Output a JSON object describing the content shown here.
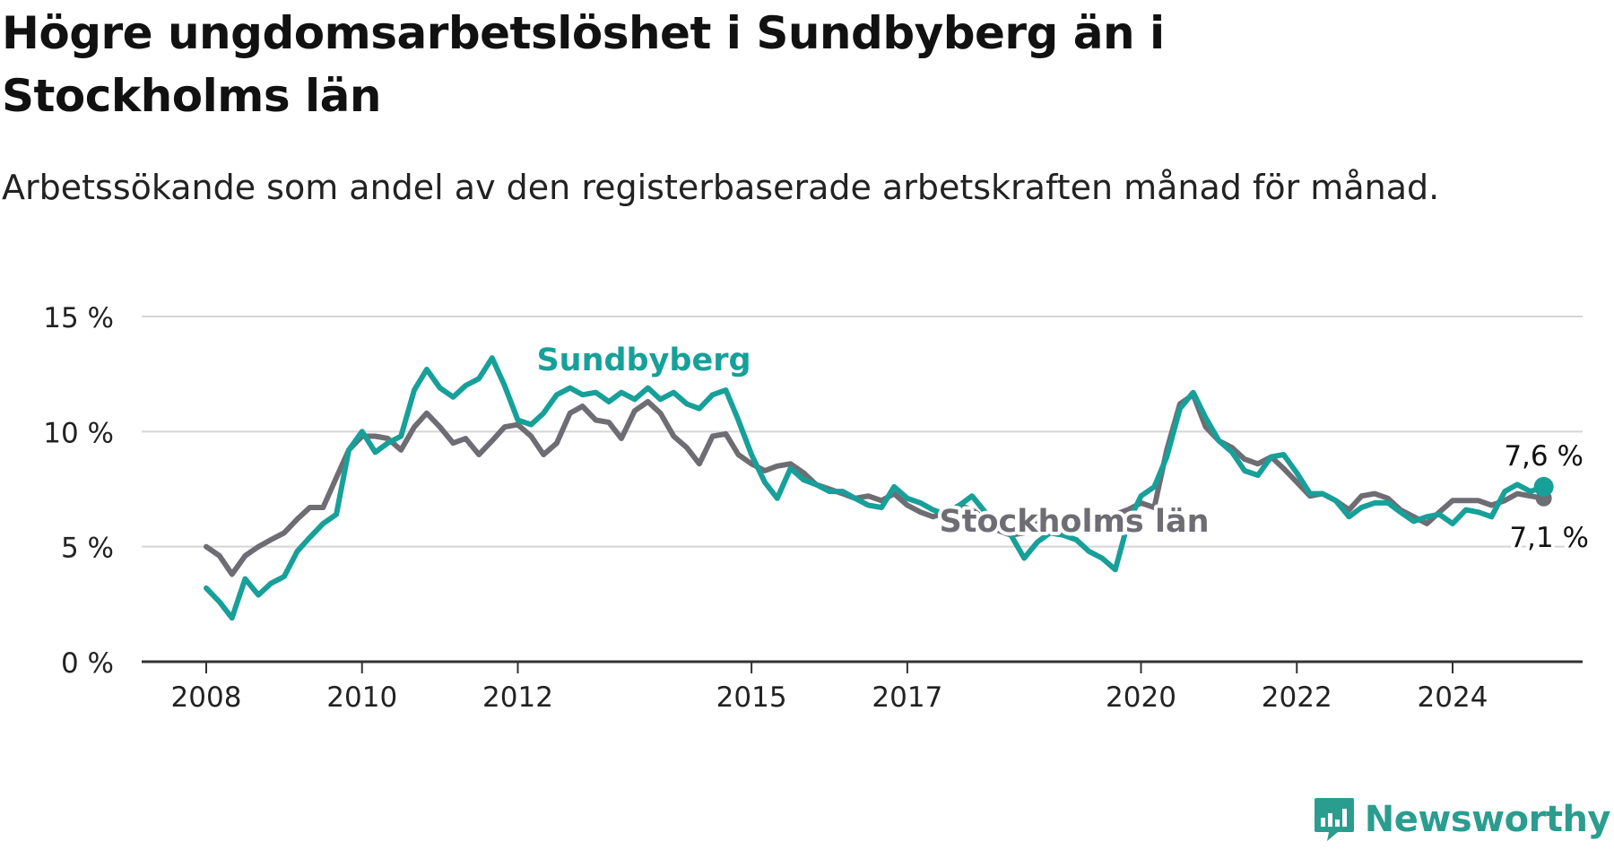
{
  "title": "Högre ungdomsarbetslöshet i Sundbyberg än i Stockholms län",
  "subtitle": "Arbetssökande som andel av den registerbaserade arbetskraften månad för månad.",
  "brand": {
    "name": "Newsworthy",
    "icon": "newsworthy-logo-icon"
  },
  "colors": {
    "sundbyberg": "#17a099",
    "stockholm": "#6e6d73",
    "grid": "#d5d5d5",
    "axis": "#333333",
    "text": "#222222"
  },
  "chart_data": {
    "type": "line",
    "title": "Högre ungdomsarbetslöshet i Sundbyberg än i Stockholms län",
    "xlabel": "",
    "ylabel": "",
    "ylim": [
      0,
      15
    ],
    "yticks": [
      0,
      5,
      10,
      15
    ],
    "ytick_labels": [
      "0 %",
      "5 %",
      "10 %",
      "15 %"
    ],
    "xticks": [
      2008,
      2010,
      2012,
      2015,
      2017,
      2020,
      2022,
      2024
    ],
    "xtick_labels": [
      "2008",
      "2010",
      "2012",
      "2015",
      "2017",
      "2020",
      "2022",
      "2024"
    ],
    "grid": true,
    "legend": "direct labels on lines",
    "series": [
      {
        "name": "Sundbyberg",
        "color": "#17a099",
        "last_label": "7,6 %",
        "points": [
          [
            2008.0,
            3.2
          ],
          [
            2008.17,
            2.6
          ],
          [
            2008.33,
            1.9
          ],
          [
            2008.5,
            3.6
          ],
          [
            2008.67,
            2.9
          ],
          [
            2008.83,
            3.4
          ],
          [
            2009.0,
            3.7
          ],
          [
            2009.17,
            4.8
          ],
          [
            2009.33,
            5.4
          ],
          [
            2009.5,
            6.0
          ],
          [
            2009.67,
            6.4
          ],
          [
            2009.83,
            9.2
          ],
          [
            2010.0,
            10.0
          ],
          [
            2010.17,
            9.1
          ],
          [
            2010.33,
            9.5
          ],
          [
            2010.5,
            9.8
          ],
          [
            2010.67,
            11.8
          ],
          [
            2010.83,
            12.7
          ],
          [
            2011.0,
            11.9
          ],
          [
            2011.17,
            11.5
          ],
          [
            2011.33,
            12.0
          ],
          [
            2011.5,
            12.3
          ],
          [
            2011.67,
            13.2
          ],
          [
            2011.83,
            12.0
          ],
          [
            2012.0,
            10.5
          ],
          [
            2012.17,
            10.3
          ],
          [
            2012.33,
            10.8
          ],
          [
            2012.5,
            11.6
          ],
          [
            2012.67,
            11.9
          ],
          [
            2012.83,
            11.6
          ],
          [
            2013.0,
            11.7
          ],
          [
            2013.17,
            11.3
          ],
          [
            2013.33,
            11.7
          ],
          [
            2013.5,
            11.4
          ],
          [
            2013.67,
            11.9
          ],
          [
            2013.83,
            11.4
          ],
          [
            2014.0,
            11.7
          ],
          [
            2014.17,
            11.2
          ],
          [
            2014.33,
            11.0
          ],
          [
            2014.5,
            11.6
          ],
          [
            2014.67,
            11.8
          ],
          [
            2014.83,
            10.5
          ],
          [
            2015.0,
            9.0
          ],
          [
            2015.17,
            7.8
          ],
          [
            2015.33,
            7.1
          ],
          [
            2015.5,
            8.4
          ],
          [
            2015.67,
            7.9
          ],
          [
            2015.83,
            7.7
          ],
          [
            2016.0,
            7.4
          ],
          [
            2016.17,
            7.4
          ],
          [
            2016.33,
            7.1
          ],
          [
            2016.5,
            6.8
          ],
          [
            2016.67,
            6.7
          ],
          [
            2016.83,
            7.6
          ],
          [
            2017.0,
            7.1
          ],
          [
            2017.17,
            6.9
          ],
          [
            2017.33,
            6.6
          ],
          [
            2017.5,
            6.4
          ],
          [
            2017.67,
            6.8
          ],
          [
            2017.83,
            7.2
          ],
          [
            2018.0,
            6.5
          ],
          [
            2018.17,
            6.1
          ],
          [
            2018.33,
            5.5
          ],
          [
            2018.5,
            4.5
          ],
          [
            2018.67,
            5.2
          ],
          [
            2018.83,
            5.6
          ],
          [
            2019.0,
            5.5
          ],
          [
            2019.17,
            5.3
          ],
          [
            2019.33,
            4.8
          ],
          [
            2019.5,
            4.5
          ],
          [
            2019.67,
            4.0
          ],
          [
            2019.83,
            6.0
          ],
          [
            2020.0,
            7.2
          ],
          [
            2020.17,
            7.6
          ],
          [
            2020.33,
            8.9
          ],
          [
            2020.5,
            11.0
          ],
          [
            2020.67,
            11.7
          ],
          [
            2020.83,
            10.6
          ],
          [
            2021.0,
            9.6
          ],
          [
            2021.17,
            9.1
          ],
          [
            2021.33,
            8.3
          ],
          [
            2021.5,
            8.1
          ],
          [
            2021.67,
            8.9
          ],
          [
            2021.83,
            9.0
          ],
          [
            2022.0,
            8.2
          ],
          [
            2022.17,
            7.3
          ],
          [
            2022.33,
            7.3
          ],
          [
            2022.5,
            7.0
          ],
          [
            2022.67,
            6.3
          ],
          [
            2022.83,
            6.7
          ],
          [
            2023.0,
            6.9
          ],
          [
            2023.17,
            6.9
          ],
          [
            2023.33,
            6.5
          ],
          [
            2023.5,
            6.1
          ],
          [
            2023.67,
            6.3
          ],
          [
            2023.83,
            6.4
          ],
          [
            2024.0,
            6.0
          ],
          [
            2024.17,
            6.6
          ],
          [
            2024.33,
            6.5
          ],
          [
            2024.5,
            6.3
          ],
          [
            2024.67,
            7.4
          ],
          [
            2024.83,
            7.7
          ],
          [
            2025.0,
            7.4
          ],
          [
            2025.17,
            7.6
          ]
        ]
      },
      {
        "name": "Stockholms län",
        "color": "#6e6d73",
        "last_label": "7,1 %",
        "points": [
          [
            2008.0,
            5.0
          ],
          [
            2008.17,
            4.6
          ],
          [
            2008.33,
            3.8
          ],
          [
            2008.5,
            4.6
          ],
          [
            2008.67,
            5.0
          ],
          [
            2008.83,
            5.3
          ],
          [
            2009.0,
            5.6
          ],
          [
            2009.17,
            6.2
          ],
          [
            2009.33,
            6.7
          ],
          [
            2009.5,
            6.7
          ],
          [
            2009.67,
            8.0
          ],
          [
            2009.83,
            9.2
          ],
          [
            2010.0,
            9.8
          ],
          [
            2010.17,
            9.8
          ],
          [
            2010.33,
            9.7
          ],
          [
            2010.5,
            9.2
          ],
          [
            2010.67,
            10.2
          ],
          [
            2010.83,
            10.8
          ],
          [
            2011.0,
            10.2
          ],
          [
            2011.17,
            9.5
          ],
          [
            2011.33,
            9.7
          ],
          [
            2011.5,
            9.0
          ],
          [
            2011.67,
            9.6
          ],
          [
            2011.83,
            10.2
          ],
          [
            2012.0,
            10.3
          ],
          [
            2012.17,
            9.8
          ],
          [
            2012.33,
            9.0
          ],
          [
            2012.5,
            9.5
          ],
          [
            2012.67,
            10.8
          ],
          [
            2012.83,
            11.1
          ],
          [
            2013.0,
            10.5
          ],
          [
            2013.17,
            10.4
          ],
          [
            2013.33,
            9.7
          ],
          [
            2013.5,
            10.9
          ],
          [
            2013.67,
            11.3
          ],
          [
            2013.83,
            10.8
          ],
          [
            2014.0,
            9.8
          ],
          [
            2014.17,
            9.3
          ],
          [
            2014.33,
            8.6
          ],
          [
            2014.5,
            9.8
          ],
          [
            2014.67,
            9.9
          ],
          [
            2014.83,
            9.0
          ],
          [
            2015.0,
            8.6
          ],
          [
            2015.17,
            8.3
          ],
          [
            2015.33,
            8.5
          ],
          [
            2015.5,
            8.6
          ],
          [
            2015.67,
            8.2
          ],
          [
            2015.83,
            7.7
          ],
          [
            2016.0,
            7.5
          ],
          [
            2016.17,
            7.3
          ],
          [
            2016.33,
            7.1
          ],
          [
            2016.5,
            7.2
          ],
          [
            2016.67,
            7.0
          ],
          [
            2016.83,
            7.3
          ],
          [
            2017.0,
            6.8
          ],
          [
            2017.17,
            6.5
          ],
          [
            2017.33,
            6.3
          ],
          [
            2017.5,
            6.5
          ],
          [
            2017.67,
            6.8
          ],
          [
            2017.83,
            6.6
          ],
          [
            2018.0,
            6.2
          ],
          [
            2018.17,
            5.7
          ],
          [
            2018.33,
            5.5
          ],
          [
            2018.5,
            5.6
          ],
          [
            2018.67,
            6.2
          ],
          [
            2018.83,
            6.4
          ],
          [
            2019.0,
            6.1
          ],
          [
            2019.17,
            5.9
          ],
          [
            2019.33,
            6.1
          ],
          [
            2019.5,
            6.2
          ],
          [
            2019.67,
            6.4
          ],
          [
            2019.83,
            6.6
          ],
          [
            2020.0,
            6.9
          ],
          [
            2020.17,
            6.7
          ],
          [
            2020.33,
            9.2
          ],
          [
            2020.5,
            11.2
          ],
          [
            2020.67,
            11.6
          ],
          [
            2020.83,
            10.2
          ],
          [
            2021.0,
            9.6
          ],
          [
            2021.17,
            9.3
          ],
          [
            2021.33,
            8.8
          ],
          [
            2021.5,
            8.6
          ],
          [
            2021.67,
            8.9
          ],
          [
            2021.83,
            8.4
          ],
          [
            2022.0,
            7.8
          ],
          [
            2022.17,
            7.2
          ],
          [
            2022.33,
            7.3
          ],
          [
            2022.5,
            7.0
          ],
          [
            2022.67,
            6.6
          ],
          [
            2022.83,
            7.2
          ],
          [
            2023.0,
            7.3
          ],
          [
            2023.17,
            7.1
          ],
          [
            2023.33,
            6.6
          ],
          [
            2023.5,
            6.3
          ],
          [
            2023.67,
            6.0
          ],
          [
            2023.83,
            6.5
          ],
          [
            2024.0,
            7.0
          ],
          [
            2024.17,
            7.0
          ],
          [
            2024.33,
            7.0
          ],
          [
            2024.5,
            6.8
          ],
          [
            2024.67,
            7.0
          ],
          [
            2024.83,
            7.3
          ],
          [
            2025.0,
            7.2
          ],
          [
            2025.17,
            7.1
          ]
        ]
      }
    ]
  }
}
